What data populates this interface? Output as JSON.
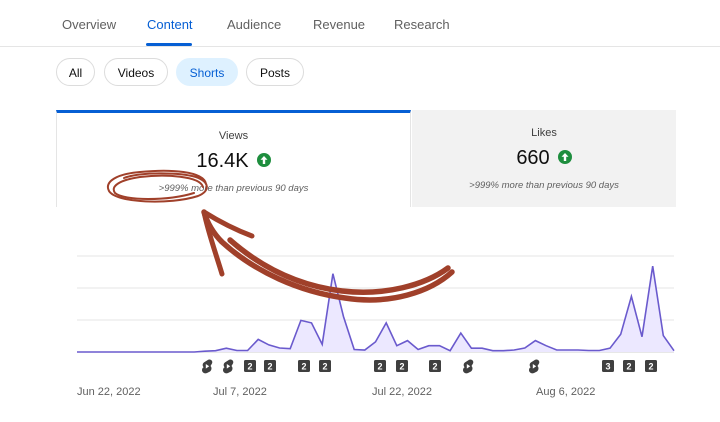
{
  "tabs": [
    {
      "label": "Overview",
      "active": false
    },
    {
      "label": "Content",
      "active": true
    },
    {
      "label": "Audience",
      "active": false
    },
    {
      "label": "Revenue",
      "active": false
    },
    {
      "label": "Research",
      "active": false
    }
  ],
  "filters": [
    {
      "label": "All",
      "active": false
    },
    {
      "label": "Videos",
      "active": false
    },
    {
      "label": "Shorts",
      "active": true
    },
    {
      "label": "Posts",
      "active": false
    }
  ],
  "metrics": {
    "views": {
      "label": "Views",
      "value": "16.4K",
      "comparison": ">999% more than previous 90 days",
      "trend": "up-arrow-icon",
      "trend_color": "#1e8e3e"
    },
    "likes": {
      "label": "Likes",
      "value": "660",
      "comparison": ">999% more than previous 90 days",
      "trend": "up-arrow-icon",
      "trend_color": "#1e8e3e"
    }
  },
  "annotation": {
    "color": "#a0402a",
    "shapes": [
      "hand-drawn-circle",
      "curved-arrow"
    ]
  },
  "chart_data": {
    "type": "area",
    "x_labels": [
      "Jun 22, 2022",
      "Jul 7, 2022",
      "Jul 22, 2022",
      "Aug 6, 2022"
    ],
    "values": [
      0,
      0,
      0,
      0,
      0,
      0,
      0,
      0,
      0,
      0,
      0,
      0,
      0.3,
      0.5,
      1.5,
      0.6,
      0.6,
      5,
      2.8,
      1.6,
      1.3,
      12.5,
      11.5,
      3,
      31,
      14,
      1,
      0.8,
      4,
      11.5,
      2.5,
      4.5,
      1,
      2.5,
      2.5,
      0.5,
      7.5,
      1.5,
      1.5,
      0.5,
      0.5,
      0.8,
      1.6,
      4.5,
      2.5,
      0.8,
      0.8,
      0.8,
      0.6,
      0.6,
      1.5,
      7,
      22,
      6,
      34,
      6.5,
      0.5
    ],
    "line_color": "#6a5acd",
    "fill_color": "#ece8ff",
    "markers": [
      {
        "type": "shorts-icon"
      },
      {
        "type": "shorts-icon"
      },
      {
        "type": "badge",
        "label": "2"
      },
      {
        "type": "badge",
        "label": "2"
      },
      {
        "type": "badge",
        "label": "2"
      },
      {
        "type": "badge",
        "label": "2"
      },
      {
        "type": "badge",
        "label": "2"
      },
      {
        "type": "badge",
        "label": "2"
      },
      {
        "type": "badge",
        "label": "2"
      },
      {
        "type": "shorts-icon"
      },
      {
        "type": "shorts-icon"
      },
      {
        "type": "badge",
        "label": "3"
      },
      {
        "type": "badge",
        "label": "2"
      },
      {
        "type": "badge",
        "label": "2"
      }
    ]
  }
}
